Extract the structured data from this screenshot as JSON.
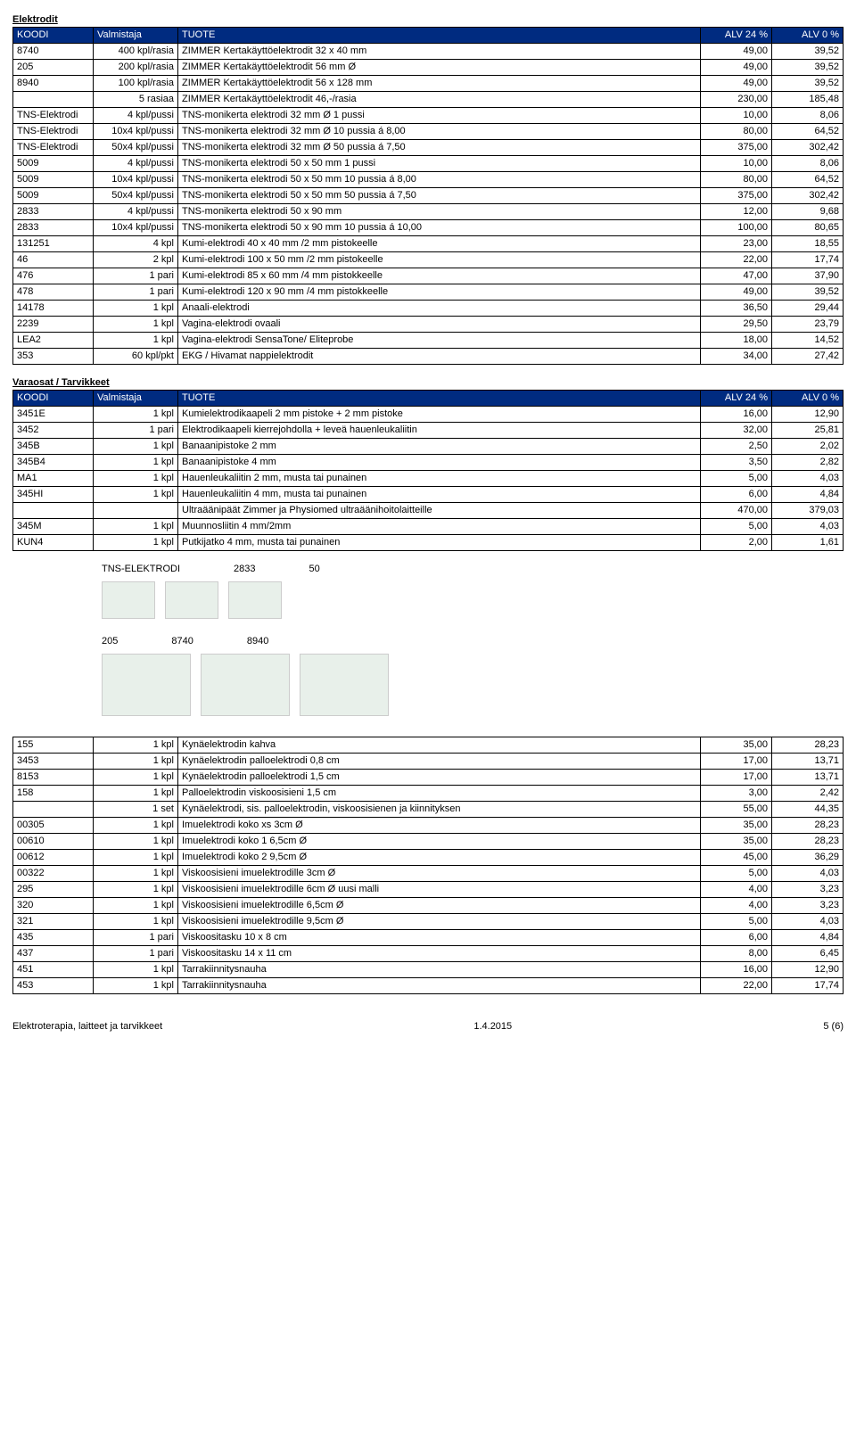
{
  "sections": {
    "elektrodit": {
      "title": "Elektrodit"
    },
    "varaosat": {
      "title": "Varaosat / Tarvikkeet"
    }
  },
  "headers": {
    "koodi": "KOODI",
    "valmistaja": "Valmistaja",
    "tuote": "TUOTE",
    "alv24": "ALV 24 %",
    "alv0": "ALV 0 %"
  },
  "elektrodit_rows": [
    [
      "8740",
      "400 kpl/rasia",
      "ZIMMER Kertakäyttöelektrodit  32 x 40 mm",
      "49,00",
      "39,52"
    ],
    [
      "205",
      "200 kpl/rasia",
      "ZIMMER Kertakäyttöelektrodit  56 mm Ø",
      "49,00",
      "39,52"
    ],
    [
      "8940",
      "100 kpl/rasia",
      "ZIMMER Kertakäyttöelektrodit 56 x 128 mm",
      "49,00",
      "39,52"
    ],
    [
      "",
      "5 rasiaa",
      "ZIMMER Kertakäyttöelektrodit  46,-/rasia",
      "230,00",
      "185,48"
    ],
    [
      "TNS-Elektrodi",
      "4 kpl/pussi",
      "TNS-monikerta elektrodi 32 mm Ø     1 pussi",
      "10,00",
      "8,06"
    ],
    [
      "TNS-Elektrodi",
      "10x4 kpl/pussi",
      "TNS-monikerta elektrodi 32 mm Ø     10 pussia    á 8,00",
      "80,00",
      "64,52"
    ],
    [
      "TNS-Elektrodi",
      "50x4 kpl/pussi",
      "TNS-monikerta elektrodi 32 mm Ø     50 pussia     á 7,50",
      "375,00",
      "302,42"
    ],
    [
      "5009",
      "4 kpl/pussi",
      "TNS-monikerta elektrodi 50 x 50 mm  1 pussi",
      "10,00",
      "8,06"
    ],
    [
      "5009",
      "10x4 kpl/pussi",
      "TNS-monikerta elektrodi 50 x 50 mm  10 pussia    á 8,00",
      "80,00",
      "64,52"
    ],
    [
      "5009",
      "50x4 kpl/pussi",
      "TNS-monikerta elektrodi 50 x 50 mm  50 pussia    á 7,50",
      "375,00",
      "302,42"
    ],
    [
      "2833",
      "4 kpl/pussi",
      "TNS-monikerta elektrodi 50 x 90 mm",
      "12,00",
      "9,68"
    ],
    [
      "2833",
      "10x4 kpl/pussi",
      "TNS-monikerta elektrodi 50 x 90 mm  10 pussia  á 10,00",
      "100,00",
      "80,65"
    ],
    [
      "131251",
      "4 kpl",
      "Kumi-elektrodi 40 x 40 mm  /2 mm pistokeelle",
      "23,00",
      "18,55"
    ],
    [
      "46",
      "2 kpl",
      "Kumi-elektrodi 100 x 50 mm  /2 mm pistokeelle",
      "22,00",
      "17,74"
    ],
    [
      "476",
      "1 pari",
      "Kumi-elektrodi 85 x 60 mm /4 mm pistokkeelle",
      "47,00",
      "37,90"
    ],
    [
      "478",
      "1 pari",
      "Kumi-elektrodi 120 x 90 mm /4 mm pistokkeelle",
      "49,00",
      "39,52"
    ],
    [
      "14178",
      "1 kpl",
      "Anaali-elektrodi",
      "36,50",
      "29,44"
    ],
    [
      "2239",
      "1 kpl",
      "Vagina-elektrodi ovaali",
      "29,50",
      "23,79"
    ],
    [
      "LEA2",
      "1 kpl",
      "Vagina-elektrodi SensaTone/ Eliteprobe",
      "18,00",
      "14,52"
    ],
    [
      "353",
      "60 kpl/pkt",
      "EKG / Hivamat nappielektrodit",
      "34,00",
      "27,42"
    ]
  ],
  "varaosat_rows": [
    [
      "3451E",
      "1 kpl",
      "Kumielektrodikaapeli 2 mm pistoke + 2 mm pistoke",
      "16,00",
      "12,90"
    ],
    [
      "3452",
      "1 pari",
      "Elektrodikaapeli kierrejohdolla + leveä hauenleukaliitin",
      "32,00",
      "25,81"
    ],
    [
      "345B",
      "1 kpl",
      "Banaanipistoke 2 mm",
      "2,50",
      "2,02"
    ],
    [
      "345B4",
      "1 kpl",
      "Banaanipistoke 4 mm",
      "3,50",
      "2,82"
    ],
    [
      "MA1",
      "1 kpl",
      "Hauenleukaliitin 2 mm, musta tai punainen",
      "5,00",
      "4,03"
    ],
    [
      "345HI",
      "1 kpl",
      "Hauenleukaliitin 4 mm, musta tai punainen",
      "6,00",
      "4,84"
    ],
    [
      "",
      "",
      "Ultraäänipäät Zimmer ja Physiomed ultraäänihoitolaitteille",
      "470,00",
      "379,03"
    ],
    [
      "345M",
      "1 kpl",
      "Muunnosliitin 4 mm/2mm",
      "5,00",
      "4,03"
    ],
    [
      "KUN4",
      "1 kpl",
      "Putkijatko 4 mm, musta tai punainen",
      "2,00",
      "1,61"
    ]
  ],
  "image_labels": {
    "row1a": "TNS-ELEKTRODI",
    "row1b": "2833",
    "row1c": "50",
    "row2a": "205",
    "row2b": "8740",
    "row2c": "8940"
  },
  "misc_rows": [
    [
      "155",
      "1 kpl",
      "Kynäelektrodin kahva",
      "35,00",
      "28,23"
    ],
    [
      "3453",
      "1 kpl",
      "Kynäelektrodin palloelektrodi 0,8 cm",
      "17,00",
      "13,71"
    ],
    [
      "8153",
      "1 kpl",
      "Kynäelektrodin palloelektrodi 1,5 cm",
      "17,00",
      "13,71"
    ],
    [
      "158",
      "1 kpl",
      "Palloelektrodin viskoosisieni 1,5 cm",
      "3,00",
      "2,42"
    ],
    [
      "",
      "1 set",
      "Kynäelektrodi, sis. palloelektrodin, viskoosisienen ja kiinnityksen",
      "55,00",
      "44,35"
    ],
    [
      "00305",
      "1 kpl",
      "Imuelektrodi koko xs   3cm Ø",
      "35,00",
      "28,23"
    ],
    [
      "00610",
      "1 kpl",
      "Imuelektrodi koko 1   6,5cm Ø",
      "35,00",
      "28,23"
    ],
    [
      "00612",
      "1 kpl",
      "Imuelektrodi koko 2   9,5cm Ø",
      "45,00",
      "36,29"
    ],
    [
      "00322",
      "1 kpl",
      "Viskoosisieni imuelektrodille 3cm Ø",
      "5,00",
      "4,03"
    ],
    [
      "295",
      "1 kpl",
      "Viskoosisieni imuelektrodille 6cm Ø  uusi malli",
      "4,00",
      "3,23"
    ],
    [
      "320",
      "1 kpl",
      "Viskoosisieni imuelektrodille 6,5cm Ø",
      "4,00",
      "3,23"
    ],
    [
      "321",
      "1 kpl",
      "Viskoosisieni imuelektrodille 9,5cm Ø",
      "5,00",
      "4,03"
    ],
    [
      "435",
      "1 pari",
      "Viskoositasku 10 x 8 cm",
      "6,00",
      "4,84"
    ],
    [
      "437",
      "1 pari",
      "Viskoositasku 14 x 11 cm",
      "8,00",
      "6,45"
    ],
    [
      "451",
      "1 kpl",
      "Tarrakiinnitysnauha",
      "16,00",
      "12,90"
    ],
    [
      "453",
      "1 kpl",
      "Tarrakiinnitysnauha",
      "22,00",
      "17,74"
    ]
  ],
  "footer": {
    "left": "Elektroterapia, laitteet ja tarvikkeet",
    "center": "1.4.2015",
    "right": "5 (6)"
  }
}
